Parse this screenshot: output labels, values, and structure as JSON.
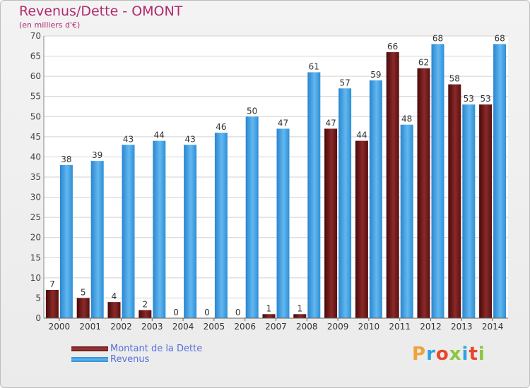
{
  "title": "Revenus/Dette - OMONT",
  "subtitle": "(en milliers d'€)",
  "logo_text": "Proxiti",
  "colors": {
    "dette": "#6b1515",
    "dette_light": "#9a3a3a",
    "revenus": "#2f8fd6",
    "revenus_light": "#5cb3ec",
    "title": "#b02a6e",
    "legend_text": "#5a6fdc",
    "logo": [
      "#f0a23b",
      "#2ea3e0",
      "#e8462c",
      "#8cc63f",
      "#2ea3e0",
      "#e8462c",
      "#8cc63f"
    ]
  },
  "chart_data": {
    "type": "bar",
    "categories": [
      "2000",
      "2001",
      "2002",
      "2003",
      "2004",
      "2005",
      "2006",
      "2007",
      "2008",
      "2009",
      "2010",
      "2011",
      "2012",
      "2013",
      "2014"
    ],
    "series": [
      {
        "name": "Montant de la Dette",
        "values": [
          7,
          5,
          4,
          2,
          0,
          0,
          0,
          1,
          1,
          47,
          44,
          66,
          62,
          58,
          53
        ]
      },
      {
        "name": "Revenus",
        "values": [
          38,
          39,
          43,
          44,
          43,
          46,
          50,
          47,
          61,
          57,
          59,
          48,
          68,
          53,
          68
        ]
      }
    ],
    "yticks": [
      0,
      5,
      10,
      15,
      20,
      25,
      30,
      35,
      40,
      45,
      50,
      55,
      60,
      65,
      70
    ],
    "ylim": [
      0,
      70
    ],
    "grid": true
  }
}
